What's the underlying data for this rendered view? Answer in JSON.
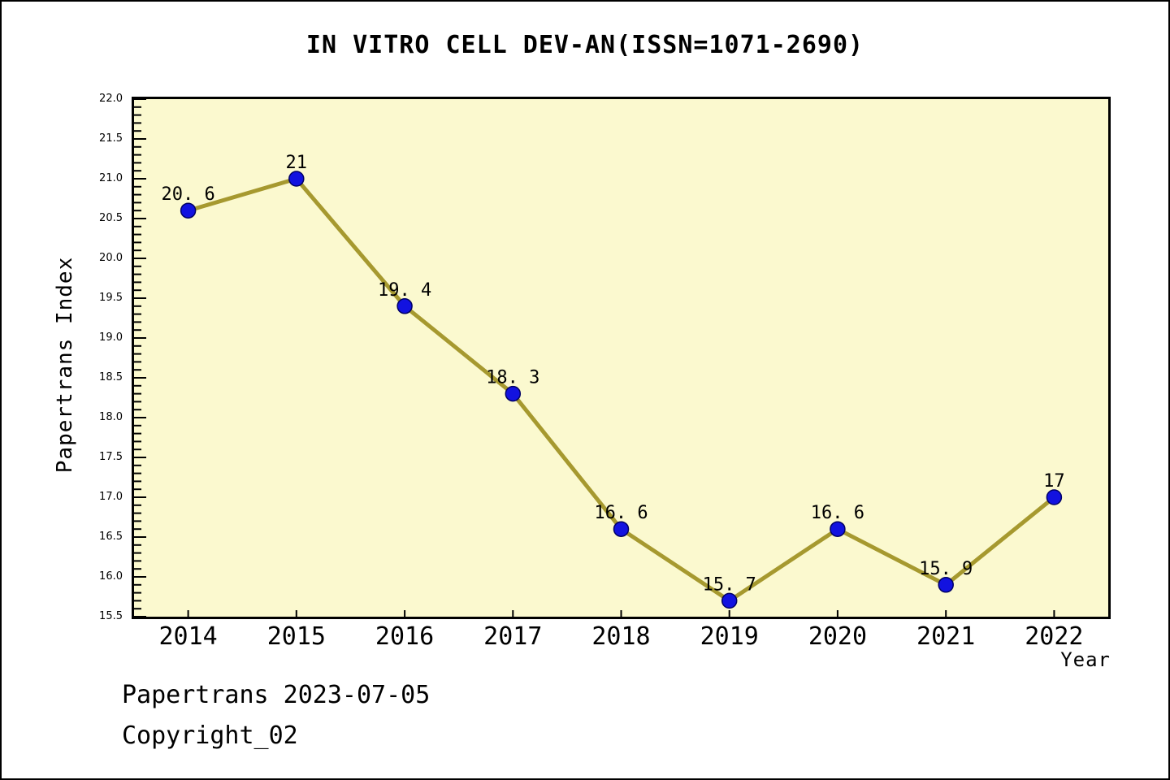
{
  "header": {
    "title": "IN VITRO CELL DEV-AN(ISSN=1071-2690)"
  },
  "footer": {
    "line1": "Papertrans 2023-07-05",
    "line2": "Copyright_02"
  },
  "chart_data": {
    "type": "line",
    "title": "IN VITRO CELL DEV-AN(ISSN=1071-2690)",
    "xlabel": "Year",
    "ylabel": "Papertrans Index",
    "x": [
      2014,
      2015,
      2016,
      2017,
      2018,
      2019,
      2020,
      2021,
      2022
    ],
    "series": [
      {
        "name": "Papertrans Index",
        "values": [
          20.6,
          21,
          19.4,
          18.3,
          16.6,
          15.7,
          16.6,
          15.9,
          17
        ],
        "point_labels": [
          "20. 6",
          "21",
          "19. 4",
          "18. 3",
          "16. 6",
          "15. 7",
          "16. 6",
          "15. 9",
          "17"
        ]
      }
    ],
    "ylim": [
      15.5,
      22.0
    ],
    "ytick_major_step": 0.5,
    "ytick_minor_step": 0.1,
    "ytick_label_format_decimals": 1,
    "grid": false,
    "legend": "none",
    "colors": {
      "figure_background": "#FFFFFF",
      "plot_background": "#FBF9CF",
      "line": "#A6992F",
      "marker_fill": "#1212E0",
      "marker_edge": "#000066",
      "axis": "#000000",
      "text": "#000000"
    },
    "marker": "circle",
    "marker_radius": 9,
    "line_width": 5
  }
}
